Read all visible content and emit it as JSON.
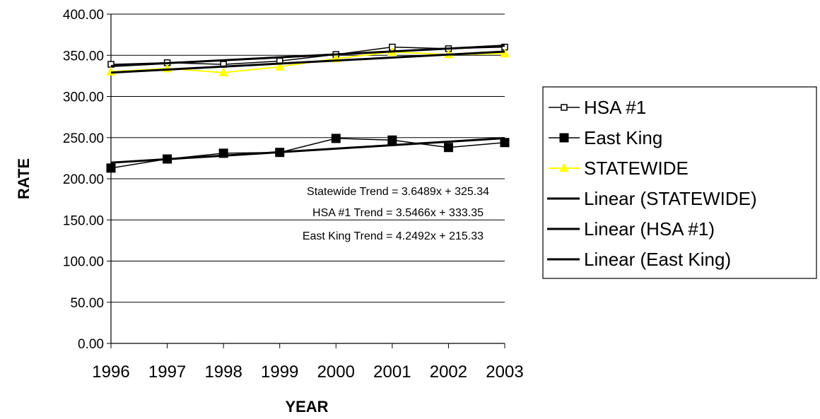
{
  "chart_data": {
    "type": "line",
    "title": "",
    "xlabel": "YEAR",
    "ylabel": "RATE",
    "x": [
      1996,
      1997,
      1998,
      1999,
      2000,
      2001,
      2002,
      2003
    ],
    "x_tick_labels": [
      "1996",
      "1997",
      "1998",
      "1999",
      "2000",
      "2001",
      "2002",
      "2003"
    ],
    "ylim": [
      0,
      400
    ],
    "y_tick_labels": [
      "0.00",
      "50.00",
      "100.00",
      "150.00",
      "200.00",
      "250.00",
      "300.00",
      "350.00",
      "400.00"
    ],
    "grid": "horizontal",
    "legend_position": "right",
    "series": [
      {
        "name": "HSA #1",
        "marker": "open-square",
        "color": "#000000",
        "values": [
          339,
          341,
          339,
          343,
          351,
          360,
          358,
          360
        ]
      },
      {
        "name": "East King",
        "marker": "filled-square",
        "color": "#000000",
        "values": [
          213,
          224,
          231,
          232,
          249,
          247,
          238,
          244
        ]
      },
      {
        "name": "STATEWIDE",
        "marker": "triangle",
        "color": "#ffff00",
        "values": [
          330,
          334,
          329,
          336,
          346,
          354,
          351,
          352
        ]
      }
    ],
    "trendlines": [
      {
        "name": "Linear (STATEWIDE)",
        "of": "STATEWIDE",
        "slope": 3.6489,
        "intercept": 325.34,
        "color": "#000000"
      },
      {
        "name": "Linear (HSA #1)",
        "of": "HSA #1",
        "slope": 3.5466,
        "intercept": 333.35,
        "color": "#000000"
      },
      {
        "name": "Linear (East King)",
        "of": "East King",
        "slope": 4.2492,
        "intercept": 215.33,
        "color": "#000000"
      }
    ],
    "annotations": [
      "Statewide Trend = 3.6489x + 325.34",
      "HSA #1 Trend = 3.5466x + 333.35",
      "East King Trend = 4.2492x + 215.33"
    ]
  }
}
